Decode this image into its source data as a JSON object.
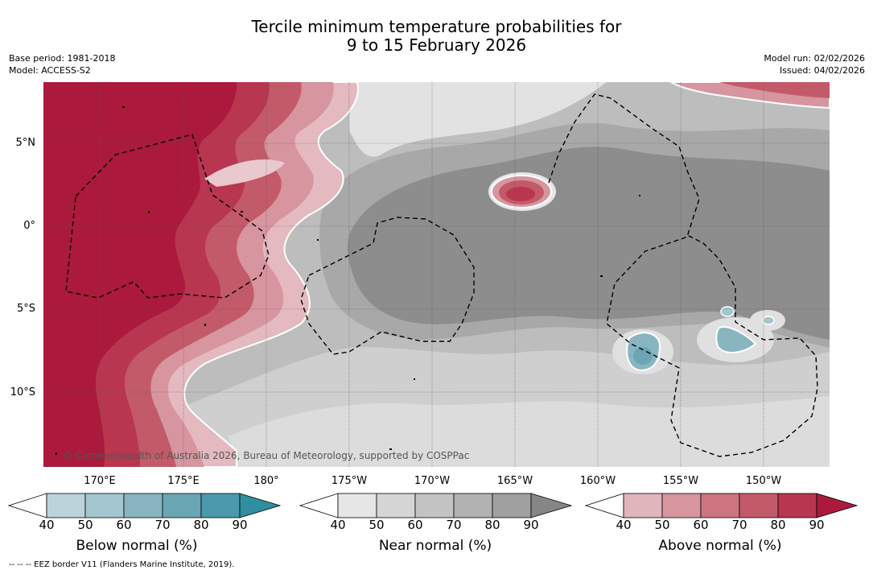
{
  "title": {
    "line1": "Tercile minimum temperature probabilities for",
    "line2": "9 to 15 February 2026"
  },
  "meta": {
    "base_period": "Base period: 1981-2018",
    "model": "Model: ACCESS-S2",
    "model_run": "Model run: 02/02/2026",
    "issued": "Issued: 04/02/2026"
  },
  "map": {
    "lat_labels": [
      "5°N",
      "0°",
      "5°S",
      "10°S"
    ],
    "lon_labels": [
      "170°E",
      "175°E",
      "180°",
      "175°W",
      "170°W",
      "165°W",
      "160°W",
      "155°W",
      "150°W"
    ],
    "copyright": "© Commonwealth of Australia 2026, Bureau of Meteorology, supported by COSPPac"
  },
  "colorbars": {
    "ticks": [
      "40",
      "50",
      "60",
      "70",
      "80",
      "90"
    ],
    "below": {
      "title": "Below normal (%)",
      "colors": [
        "#ffffff",
        "#bcd3da",
        "#a4c6ce",
        "#89b5c1",
        "#6aa6b3",
        "#4a9aab",
        "#2f8e9f"
      ]
    },
    "near": {
      "title": "Near normal (%)",
      "colors": [
        "#ffffff",
        "#e6e6e6",
        "#d6d6d6",
        "#c4c4c4",
        "#b2b2b2",
        "#a0a0a0",
        "#868686"
      ]
    },
    "above": {
      "title": "Above normal (%)",
      "colors": [
        "#ffffff",
        "#e0b5bc",
        "#d6959f",
        "#cc7581",
        "#c35a69",
        "#b93650",
        "#ab1a3c"
      ]
    }
  },
  "footnote": "-- -- -- EEZ border V11 (Flanders Marine Institute, 2019)."
}
